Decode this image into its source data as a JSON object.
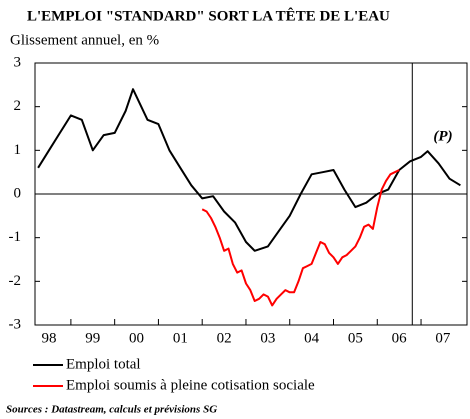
{
  "chart_data": {
    "type": "line",
    "title": "L'EMPLOI \"STANDARD\" SORT LA TÊTE DE L'EAU",
    "subtitle": "Glissement annuel, en %",
    "source": "Sources : Datastream, calculs et prévisions SG",
    "annotation": "(P)",
    "forecast_start": 2006.8,
    "xlim": [
      1998.18,
      2008.05
    ],
    "ylim": [
      -3,
      3
    ],
    "yticks": [
      -3,
      -2,
      -1,
      0,
      1,
      2,
      3
    ],
    "xticks": [
      {
        "value": 1998,
        "label": "98"
      },
      {
        "value": 1999,
        "label": "99"
      },
      {
        "value": 2000,
        "label": "00"
      },
      {
        "value": 2001,
        "label": "01"
      },
      {
        "value": 2002,
        "label": "02"
      },
      {
        "value": 2003,
        "label": "03"
      },
      {
        "value": 2004,
        "label": "04"
      },
      {
        "value": 2005,
        "label": "05"
      },
      {
        "value": 2006,
        "label": "06"
      },
      {
        "value": 2007,
        "label": "07"
      }
    ],
    "series": [
      {
        "name": "Emploi total",
        "color": "#000000",
        "x": [
          1998.25,
          1998.5,
          1998.75,
          1999.0,
          1999.25,
          1999.5,
          1999.75,
          2000.0,
          2000.25,
          2000.42,
          2000.75,
          2001.0,
          2001.25,
          2001.5,
          2001.75,
          2002.0,
          2002.25,
          2002.5,
          2002.75,
          2003.0,
          2003.2,
          2003.5,
          2003.75,
          2004.0,
          2004.25,
          2004.5,
          2004.75,
          2005.0,
          2005.25,
          2005.5,
          2005.75,
          2006.0,
          2006.25,
          2006.5,
          2006.75,
          2007.0,
          2007.15,
          2007.4,
          2007.65,
          2007.9
        ],
        "values": [
          0.6,
          1.0,
          1.4,
          1.8,
          1.7,
          1.0,
          1.35,
          1.4,
          1.9,
          2.4,
          1.7,
          1.6,
          1.0,
          0.6,
          0.2,
          -0.1,
          -0.05,
          -0.4,
          -0.65,
          -1.1,
          -1.3,
          -1.2,
          -0.85,
          -0.5,
          0.0,
          0.45,
          0.5,
          0.55,
          0.1,
          -0.3,
          -0.2,
          0.0,
          0.1,
          0.55,
          0.75,
          0.85,
          0.98,
          0.7,
          0.35,
          0.2
        ]
      },
      {
        "name": "Emploi soumis à pleine cotisation sociale",
        "color": "#ff0000",
        "x": [
          2002.0,
          2002.1,
          2002.2,
          2002.3,
          2002.4,
          2002.5,
          2002.6,
          2002.7,
          2002.8,
          2002.9,
          2003.0,
          2003.1,
          2003.2,
          2003.3,
          2003.4,
          2003.5,
          2003.6,
          2003.7,
          2003.8,
          2003.9,
          2004.0,
          2004.1,
          2004.2,
          2004.3,
          2004.4,
          2004.5,
          2004.6,
          2004.7,
          2004.8,
          2004.9,
          2005.0,
          2005.1,
          2005.2,
          2005.3,
          2005.4,
          2005.5,
          2005.6,
          2005.7,
          2005.8,
          2005.9,
          2006.0,
          2006.1,
          2006.2,
          2006.3,
          2006.4,
          2006.5
        ],
        "values": [
          -0.35,
          -0.4,
          -0.55,
          -0.75,
          -1.0,
          -1.3,
          -1.25,
          -1.6,
          -1.8,
          -1.75,
          -2.05,
          -2.2,
          -2.45,
          -2.4,
          -2.3,
          -2.35,
          -2.55,
          -2.4,
          -2.3,
          -2.2,
          -2.25,
          -2.25,
          -2.0,
          -1.7,
          -1.65,
          -1.6,
          -1.35,
          -1.1,
          -1.15,
          -1.35,
          -1.45,
          -1.6,
          -1.45,
          -1.4,
          -1.3,
          -1.2,
          -1.0,
          -0.75,
          -0.7,
          -0.8,
          -0.3,
          0.1,
          0.3,
          0.45,
          0.5,
          0.55
        ]
      }
    ]
  }
}
